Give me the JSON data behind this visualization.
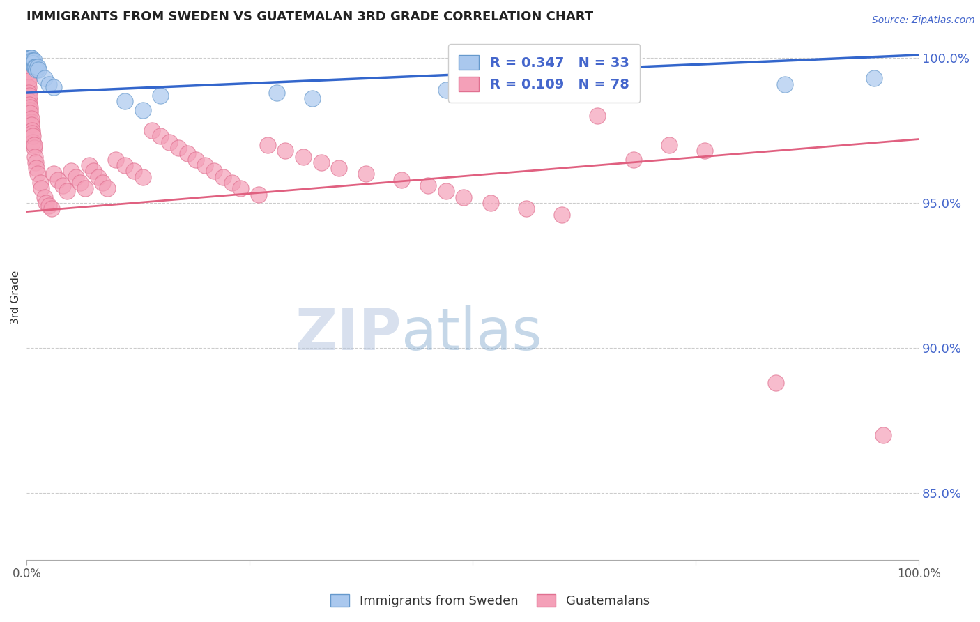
{
  "title": "IMMIGRANTS FROM SWEDEN VS GUATEMALAN 3RD GRADE CORRELATION CHART",
  "source": "Source: ZipAtlas.com",
  "ylabel": "3rd Grade",
  "right_yticks": [
    85.0,
    90.0,
    95.0,
    100.0
  ],
  "xmin": 0.0,
  "xmax": 1.0,
  "ymin": 0.827,
  "ymax": 1.008,
  "legend_bottom": [
    "Immigrants from Sweden",
    "Guatemalans"
  ],
  "watermark_zip": "ZIP",
  "watermark_atlas": "atlas",
  "sweden_color": "#aac8ee",
  "sweden_edge": "#6699cc",
  "guatemala_color": "#f4a0b8",
  "guatemala_edge": "#e07090",
  "blue_line_color": "#3366cc",
  "pink_line_color": "#e06080",
  "grid_color": "#cccccc",
  "right_tick_color": "#4466cc",
  "title_color": "#222222",
  "bg_color": "#ffffff",
  "sweden_R": 0.347,
  "sweden_N": 33,
  "guatemala_R": 0.109,
  "guatemala_N": 78,
  "blue_line_y0": 0.988,
  "blue_line_y1": 1.001,
  "pink_line_y0": 0.947,
  "pink_line_y1": 0.972,
  "sweden_x": [
    0.001,
    0.002,
    0.003,
    0.003,
    0.004,
    0.004,
    0.005,
    0.005,
    0.005,
    0.006,
    0.006,
    0.007,
    0.007,
    0.008,
    0.008,
    0.009,
    0.01,
    0.011,
    0.012,
    0.013,
    0.02,
    0.025,
    0.03,
    0.11,
    0.13,
    0.15,
    0.28,
    0.32,
    0.47,
    0.52,
    0.66,
    0.85,
    0.95
  ],
  "sweden_y": [
    0.999,
    0.999,
    1.0,
    0.999,
    1.0,
    0.999,
    1.0,
    1.0,
    0.999,
    0.998,
    0.998,
    0.999,
    0.998,
    0.997,
    0.999,
    0.997,
    0.997,
    0.996,
    0.997,
    0.996,
    0.993,
    0.991,
    0.99,
    0.985,
    0.982,
    0.987,
    0.988,
    0.986,
    0.989,
    0.988,
    0.99,
    0.991,
    0.993
  ],
  "guatemala_x": [
    0.001,
    0.001,
    0.002,
    0.002,
    0.002,
    0.003,
    0.003,
    0.003,
    0.004,
    0.004,
    0.004,
    0.005,
    0.005,
    0.005,
    0.006,
    0.006,
    0.007,
    0.007,
    0.008,
    0.008,
    0.009,
    0.01,
    0.011,
    0.012,
    0.015,
    0.016,
    0.02,
    0.022,
    0.025,
    0.028,
    0.03,
    0.035,
    0.04,
    0.045,
    0.05,
    0.055,
    0.06,
    0.065,
    0.07,
    0.075,
    0.08,
    0.085,
    0.09,
    0.1,
    0.11,
    0.12,
    0.13,
    0.14,
    0.15,
    0.16,
    0.17,
    0.18,
    0.19,
    0.2,
    0.21,
    0.22,
    0.23,
    0.24,
    0.26,
    0.27,
    0.29,
    0.31,
    0.33,
    0.35,
    0.38,
    0.42,
    0.45,
    0.47,
    0.49,
    0.52,
    0.56,
    0.6,
    0.64,
    0.68,
    0.72,
    0.76,
    0.84,
    0.96
  ],
  "guatemala_y": [
    0.995,
    0.993,
    0.99,
    0.992,
    0.988,
    0.985,
    0.987,
    0.984,
    0.982,
    0.983,
    0.981,
    0.978,
    0.979,
    0.977,
    0.975,
    0.974,
    0.971,
    0.973,
    0.969,
    0.97,
    0.966,
    0.964,
    0.962,
    0.96,
    0.957,
    0.955,
    0.952,
    0.95,
    0.949,
    0.948,
    0.96,
    0.958,
    0.956,
    0.954,
    0.961,
    0.959,
    0.957,
    0.955,
    0.963,
    0.961,
    0.959,
    0.957,
    0.955,
    0.965,
    0.963,
    0.961,
    0.959,
    0.975,
    0.973,
    0.971,
    0.969,
    0.967,
    0.965,
    0.963,
    0.961,
    0.959,
    0.957,
    0.955,
    0.953,
    0.97,
    0.968,
    0.966,
    0.964,
    0.962,
    0.96,
    0.958,
    0.956,
    0.954,
    0.952,
    0.95,
    0.948,
    0.946,
    0.98,
    0.965,
    0.97,
    0.968,
    0.888,
    0.87
  ]
}
